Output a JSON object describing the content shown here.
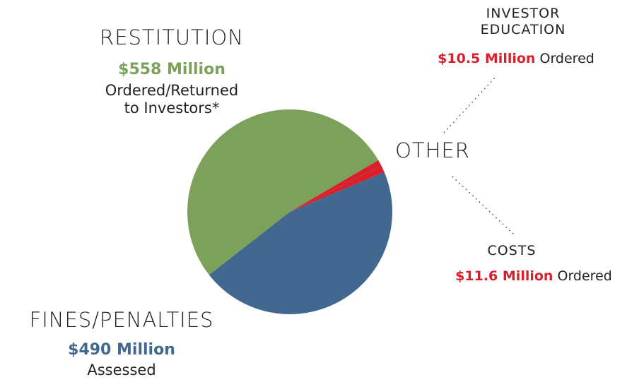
{
  "chart_data": {
    "type": "pie",
    "categories": [
      "RESTITUTION",
      "INVESTOR EDUCATION",
      "COSTS",
      "FINES/PENALTIES"
    ],
    "values": [
      558,
      10.5,
      11.6,
      490
    ],
    "value_labels": [
      "$558 Million",
      "$10.5 Million",
      "$11.6 Million",
      "$490 Million"
    ],
    "descriptions": [
      "Ordered/Returned to Investors*",
      "Ordered",
      "Ordered",
      "Assessed"
    ],
    "colors": [
      "#7ba15b",
      "#d81f2c",
      "#d81f2c",
      "#426890"
    ],
    "group_label": "OTHER"
  }
}
